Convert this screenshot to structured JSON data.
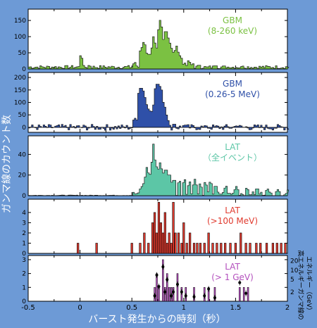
{
  "figure": {
    "ylabel": "ガンマ線のカウント数",
    "xlabel": "バースト発生からの時刻（秒）",
    "right_ylabel_line1": "高エネルギーガンマ線の",
    "right_ylabel_line2": "エネルギー（GeV）",
    "colors": {
      "background": "#6d9ad6",
      "panel": "#ffffff",
      "gbm_low": "#7bc142",
      "gbm_high": "#2f50a8",
      "lat_all": "#5cc6a6",
      "lat_100mev": "#e03a2e",
      "lat_1gev": "#b34fbd"
    }
  },
  "chart_data": [
    {
      "type": "bar",
      "panel": "gbm-low",
      "label_line1": "GBM",
      "label_line2": "(8-260 keV)",
      "color": "#7bc142",
      "xlim": [
        -0.5,
        2
      ],
      "ylim": [
        0,
        185
      ],
      "yticks": [
        0,
        50,
        100,
        150
      ],
      "bin_width": 0.016,
      "peaks": [
        [
          0.0,
          45
        ],
        [
          0.08,
          12
        ],
        [
          0.52,
          22
        ],
        [
          0.58,
          68
        ],
        [
          0.6,
          90
        ],
        [
          0.62,
          75
        ],
        [
          0.66,
          55
        ],
        [
          0.7,
          100
        ],
        [
          0.72,
          88
        ],
        [
          0.74,
          60
        ],
        [
          0.76,
          165
        ],
        [
          0.78,
          130
        ],
        [
          0.8,
          100
        ],
        [
          0.82,
          140
        ],
        [
          0.84,
          105
        ],
        [
          0.86,
          80
        ],
        [
          0.88,
          70
        ],
        [
          0.9,
          62
        ],
        [
          0.92,
          78
        ],
        [
          0.94,
          52
        ],
        [
          0.96,
          45
        ],
        [
          1.0,
          20
        ],
        [
          1.04,
          28
        ],
        [
          1.08,
          18
        ],
        [
          1.14,
          14
        ],
        [
          1.22,
          8
        ],
        [
          1.3,
          12
        ],
        [
          1.42,
          6
        ],
        [
          1.56,
          10
        ]
      ]
    },
    {
      "type": "bar",
      "panel": "gbm-high",
      "label_line1": "GBM",
      "label_line2": "(0.26-5 MeV)",
      "color": "#2f50a8",
      "xlim": [
        -0.5,
        2
      ],
      "ylim": [
        -20,
        220
      ],
      "yticks": [
        0,
        50,
        100,
        150,
        200
      ],
      "bin_width": 0.016,
      "peaks": [
        [
          0.52,
          40
        ],
        [
          0.54,
          30
        ],
        [
          0.56,
          150
        ],
        [
          0.58,
          190
        ],
        [
          0.6,
          160
        ],
        [
          0.62,
          120
        ],
        [
          0.64,
          100
        ],
        [
          0.66,
          80
        ],
        [
          0.68,
          70
        ],
        [
          0.7,
          90
        ],
        [
          0.72,
          170
        ],
        [
          0.74,
          210
        ],
        [
          0.76,
          180
        ],
        [
          0.78,
          150
        ],
        [
          0.8,
          110
        ],
        [
          0.82,
          60
        ],
        [
          0.84,
          30
        ],
        [
          0.9,
          15
        ],
        [
          1.0,
          10
        ],
        [
          1.2,
          8
        ],
        [
          1.5,
          6
        ]
      ]
    },
    {
      "type": "bar",
      "panel": "lat-all",
      "label_line1": "LAT",
      "label_line2": "（全イベント）",
      "color": "#5cc6a6",
      "xlim": [
        -0.5,
        2
      ],
      "ylim": [
        0,
        58
      ],
      "yticks": [
        0,
        20,
        40
      ],
      "bin_width": 0.016,
      "peaks": [
        [
          0.56,
          3
        ],
        [
          0.58,
          8
        ],
        [
          0.6,
          12
        ],
        [
          0.62,
          18
        ],
        [
          0.64,
          30
        ],
        [
          0.66,
          25
        ],
        [
          0.68,
          20
        ],
        [
          0.7,
          50
        ],
        [
          0.72,
          38
        ],
        [
          0.74,
          30
        ],
        [
          0.76,
          35
        ],
        [
          0.78,
          26
        ],
        [
          0.8,
          24
        ],
        [
          0.82,
          30
        ],
        [
          0.84,
          22
        ],
        [
          0.86,
          20
        ],
        [
          0.9,
          18
        ],
        [
          0.95,
          16
        ],
        [
          1.0,
          17
        ],
        [
          1.05,
          14
        ],
        [
          1.1,
          16
        ],
        [
          1.15,
          12
        ],
        [
          1.2,
          14
        ],
        [
          1.25,
          15
        ],
        [
          1.3,
          11
        ],
        [
          1.4,
          10
        ],
        [
          1.5,
          9
        ],
        [
          1.6,
          8
        ],
        [
          1.7,
          8
        ],
        [
          1.8,
          7
        ],
        [
          1.9,
          6
        ],
        [
          2.0,
          6
        ]
      ]
    },
    {
      "type": "bar",
      "panel": "lat-100mev",
      "label_line1": "LAT",
      "label_line2": "(>100 MeV)",
      "color": "#e03a2e",
      "xlim": [
        -0.5,
        2
      ],
      "ylim": [
        0,
        5.3
      ],
      "yticks": [
        0,
        1,
        2,
        3,
        4
      ],
      "x": [
        -0.02,
        0.16,
        0.5,
        0.58,
        0.62,
        0.66,
        0.7,
        0.72,
        0.74,
        0.76,
        0.78,
        0.8,
        0.82,
        0.84,
        0.86,
        0.88,
        0.9,
        0.92,
        0.95,
        0.98,
        1.0,
        1.03,
        1.06,
        1.1,
        1.13,
        1.16,
        1.2,
        1.24,
        1.28,
        1.32,
        1.36,
        1.4,
        1.45,
        1.5,
        1.55,
        1.6,
        1.64,
        1.7,
        1.74,
        1.8,
        1.86,
        1.9,
        1.94,
        1.98
      ],
      "values": [
        1,
        1,
        1,
        1,
        2,
        1,
        3,
        4,
        2,
        5,
        3,
        2,
        4,
        1,
        2,
        1,
        5,
        2,
        2,
        1,
        3,
        1,
        2,
        1,
        1,
        1,
        1,
        2,
        1,
        1,
        1,
        1,
        1,
        1,
        2,
        1,
        1,
        1,
        1,
        1,
        1,
        1,
        1,
        1
      ]
    },
    {
      "type": "scatter",
      "panel": "lat-1gev",
      "label_line1": "LAT",
      "label_line2": "(> 1 GeV)",
      "color": "#b34fbd",
      "xlim": [
        -0.5,
        2
      ],
      "ylim": [
        0,
        3.3
      ],
      "yticks": [
        0,
        1,
        2,
        3
      ],
      "right_ticks": [
        "2",
        "5",
        "10",
        "20"
      ],
      "counts": {
        "x": [
          0.72,
          0.74,
          0.76,
          0.8,
          0.82,
          0.84,
          0.86,
          0.88,
          0.9,
          0.94,
          0.98,
          1.02,
          1.1,
          1.2,
          1.24,
          1.3,
          1.54,
          1.58,
          1.62
        ],
        "values": [
          1,
          2,
          1,
          3,
          1,
          2,
          1,
          1,
          1,
          2,
          1,
          1,
          1,
          1,
          1,
          1,
          1,
          1,
          1
        ]
      },
      "energies_gev": {
        "x": [
          0.72,
          0.74,
          0.76,
          0.8,
          0.82,
          0.84,
          0.88,
          0.9,
          0.94,
          0.98,
          1.02,
          1.1,
          1.2,
          1.24,
          1.3,
          1.54,
          1.6
        ],
        "y": [
          1.5,
          7,
          3,
          13,
          2,
          5,
          1.5,
          2,
          3.5,
          2,
          1.5,
          1.4,
          1.5,
          2.5,
          1.3,
          4,
          1.8
        ]
      }
    }
  ],
  "x_axis": {
    "ticks": [
      -0.5,
      0,
      0.5,
      1,
      1.5,
      2
    ],
    "tick_labels": [
      "-0.5",
      "0",
      "0.5",
      "1",
      "1.5",
      "2"
    ]
  }
}
